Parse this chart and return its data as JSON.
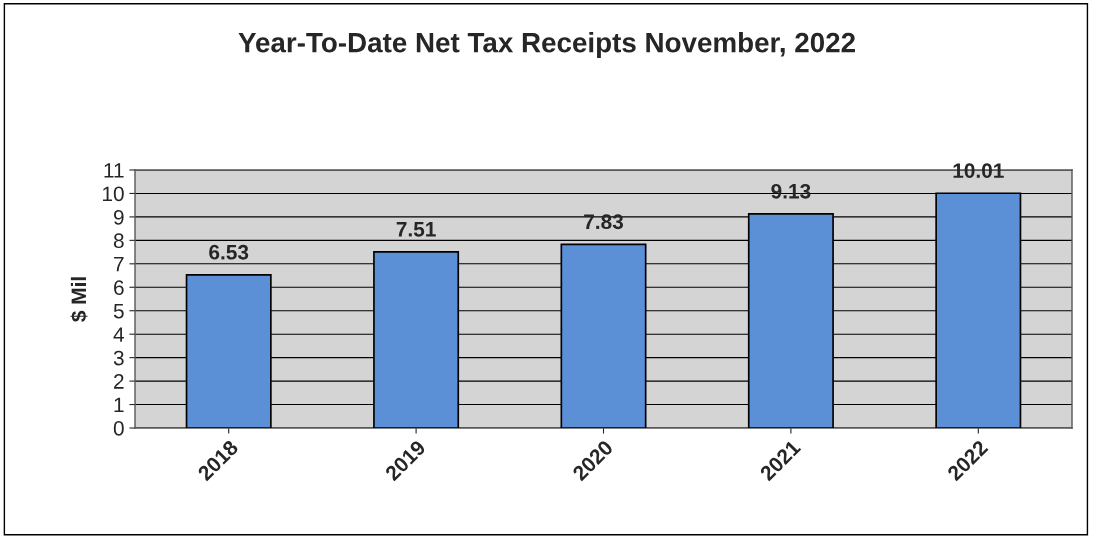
{
  "chart_data": {
    "type": "bar",
    "title": "Year-To-Date Net Tax Receipts November, 2022",
    "ylabel": "$ Mil",
    "categories": [
      "2018",
      "2019",
      "2020",
      "2021",
      "2022"
    ],
    "values": [
      6.53,
      7.51,
      7.83,
      9.13,
      10.01
    ],
    "color": "#5b8fd6",
    "ylim": [
      0,
      11
    ],
    "yticks": [
      0,
      1,
      2,
      3,
      4,
      5,
      6,
      7,
      8,
      9,
      10,
      11
    ],
    "grid": "y",
    "data_labels": true
  }
}
